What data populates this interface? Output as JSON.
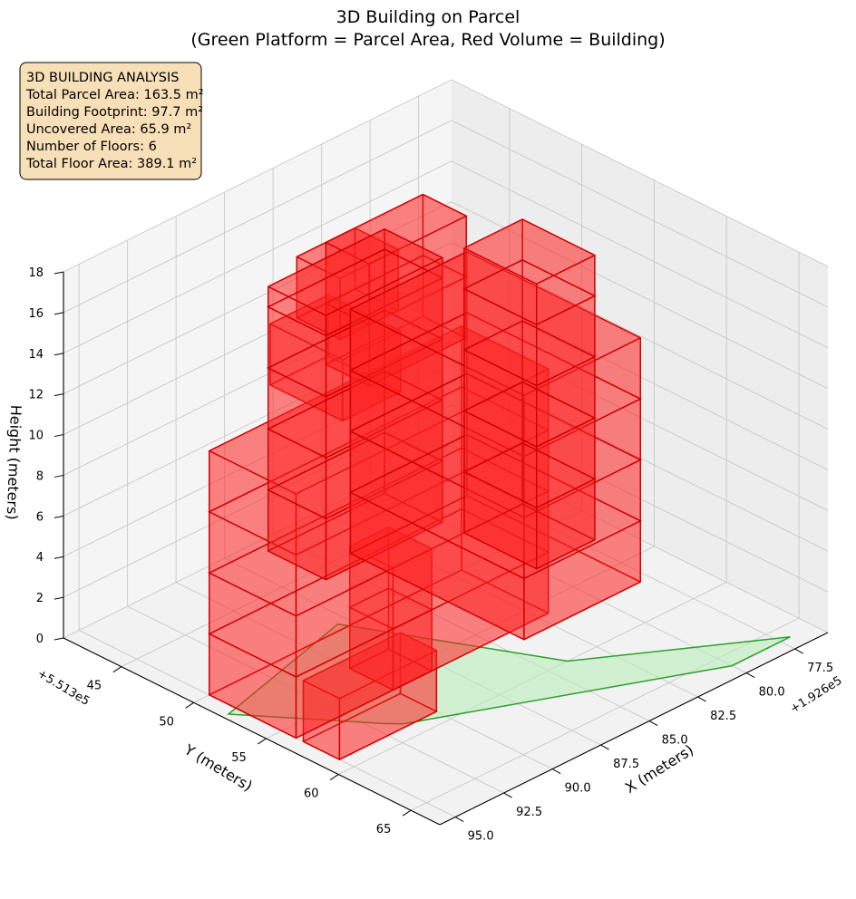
{
  "chart_data": {
    "type": "3d-bar",
    "title_line1": "3D Building on Parcel",
    "title_line2": "(Green Platform = Parcel Area, Red Volume = Building)",
    "xlabel": "X (meters)",
    "ylabel": "Y (meters)",
    "zlabel": "Height (meters)",
    "x_offset_label": "+1.926e5",
    "y_offset_label": "+5.513e5",
    "x_ticks": [
      "77.5",
      "80.0",
      "82.5",
      "85.0",
      "87.5",
      "90.0",
      "92.5",
      "95.0"
    ],
    "y_ticks": [
      "45",
      "50",
      "55",
      "60",
      "65"
    ],
    "z_ticks": [
      "0",
      "2",
      "4",
      "6",
      "8",
      "10",
      "12",
      "14",
      "16",
      "18"
    ],
    "xlim": [
      75.8,
      95.8
    ],
    "ylim": [
      41.0,
      67.0
    ],
    "zlim": [
      0,
      18
    ],
    "grid": true,
    "colors": {
      "parcel_fill": "#b6ecb6",
      "parcel_edge": "#2ca02c",
      "building_fill": "#ff2020",
      "building_edge": "#d40000",
      "pane": "#f2f2f2",
      "grid": "#c8c8c8",
      "info_box_bg": "#f7dfb8"
    },
    "parcel_polygon": [
      [
        77.0,
        66.0
      ],
      [
        84.0,
        60.0
      ],
      [
        88.0,
        49.5
      ],
      [
        95.5,
        52.0
      ],
      [
        92.0,
        58.0
      ],
      [
        91.5,
        58.7
      ],
      [
        80.0,
        66.0
      ]
    ],
    "floors": 6,
    "floor_height": 3,
    "footprints": [
      {
        "x0": 82.0,
        "x1": 95.0,
        "y0": 50.0,
        "y1": 56.0,
        "z0": 0,
        "z1": 12
      },
      {
        "x0": 78.0,
        "x1": 84.0,
        "y0": 45.0,
        "y1": 57.0,
        "z0": 0,
        "z1": 12
      },
      {
        "x0": 80.0,
        "x1": 86.0,
        "y0": 42.0,
        "y1": 46.0,
        "z0": 0,
        "z1": 13
      },
      {
        "x0": 90.0,
        "x1": 95.0,
        "y0": 56.5,
        "y1": 59.0,
        "z0": 0,
        "z1": 3
      },
      {
        "x0": 77.0,
        "x1": 80.0,
        "y0": 47.5,
        "y1": 52.5,
        "z0": 0,
        "z1": 14
      },
      {
        "x0": 87.0,
        "x1": 90.0,
        "y0": 47.5,
        "y1": 52.5,
        "z0": 12,
        "z1": 15
      },
      {
        "x0": 82.5,
        "x1": 87.5,
        "y0": 48.0,
        "y1": 51.0,
        "z0": 12,
        "z1": 18
      },
      {
        "x0": 86.0,
        "x1": 89.0,
        "y0": 48.0,
        "y1": 51.0,
        "z0": 15,
        "z1": 18
      },
      {
        "x0": 88.0,
        "x1": 90.0,
        "y0": 53.0,
        "y1": 56.0,
        "z0": 0,
        "z1": 6
      }
    ]
  },
  "info_box": {
    "title": "3D BUILDING ANALYSIS",
    "line1": "Total Parcel Area: 163.5 m²",
    "line2": "Building Footprint: 97.7 m²",
    "line3": "Uncovered Area: 65.9 m²",
    "line4": "Number of Floors: 6",
    "line5": "Total Floor Area: 389.1 m²"
  }
}
